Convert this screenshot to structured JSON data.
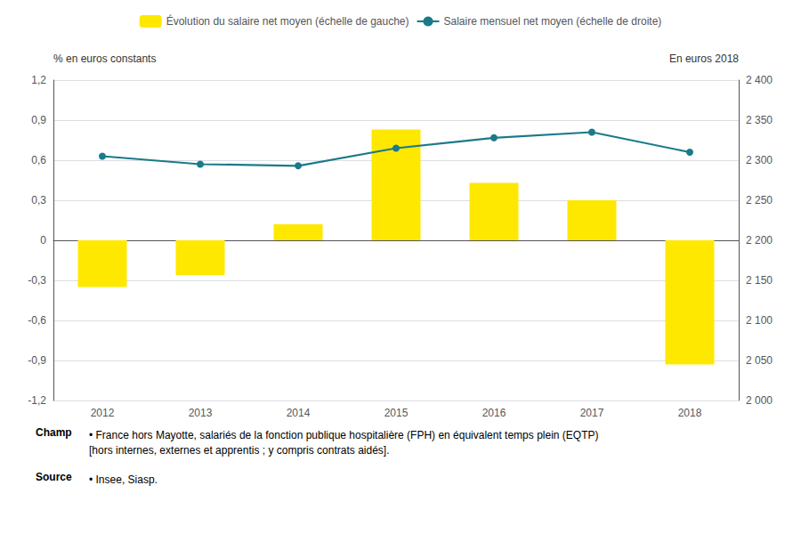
{
  "chart_data": {
    "type": "bar",
    "categories": [
      "2012",
      "2013",
      "2014",
      "2015",
      "2016",
      "2017",
      "2018"
    ],
    "series": [
      {
        "name": "Évolution du salaire net moyen (échelle de gauche)",
        "type": "bar",
        "color": "#FFE800",
        "values": [
          -0.35,
          -0.26,
          0.12,
          0.83,
          0.43,
          0.3,
          -0.93
        ]
      },
      {
        "name": "Salaire mensuel net moyen (échelle de droite)",
        "type": "line",
        "color": "#1a7a8a",
        "marker": "circle",
        "axis": "y2",
        "values": [
          2305,
          2295,
          2293,
          2315,
          2328,
          2335,
          2310
        ]
      }
    ],
    "ylabel": "% en euros constants",
    "y2label": "En euros 2018",
    "ylim": [
      -1.2,
      1.2
    ],
    "yticks": [
      {
        "value": -1.2,
        "label": "-1,2"
      },
      {
        "value": -0.9,
        "label": "-0,9"
      },
      {
        "value": -0.6,
        "label": "-0,6"
      },
      {
        "value": -0.3,
        "label": "-0,3"
      },
      0,
      {
        "value": 0.3,
        "label": "0,3"
      },
      {
        "value": 0.6,
        "label": "0,6"
      },
      {
        "value": 0.9,
        "label": "0,9"
      },
      {
        "value": 1.2,
        "label": "1,2"
      }
    ],
    "y2lim": [
      2000,
      2400
    ],
    "y2ticks": [
      {
        "value": 2000,
        "label": "2 000"
      },
      {
        "value": 2050,
        "label": "2 050"
      },
      {
        "value": 2100,
        "label": "2 100"
      },
      {
        "value": 2150,
        "label": "2 150"
      },
      {
        "value": 2200,
        "label": "2 200"
      },
      {
        "value": 2250,
        "label": "2 250"
      },
      {
        "value": 2300,
        "label": "2 300"
      },
      {
        "value": 2350,
        "label": "2 350"
      },
      {
        "value": 2400,
        "label": "2 400"
      }
    ],
    "grid": true,
    "legend": "top",
    "annotations": [
      {
        "heading": "Champ",
        "text": "• France hors Mayotte, salariés de la fonction publique hospitalière (FPH) en équivalent temps plein (EQTP)\n[hors internes, externes et apprentis ; y compris contrats aidés]."
      },
      {
        "heading": "Source",
        "text": "• Insee, Siasp."
      }
    ]
  }
}
